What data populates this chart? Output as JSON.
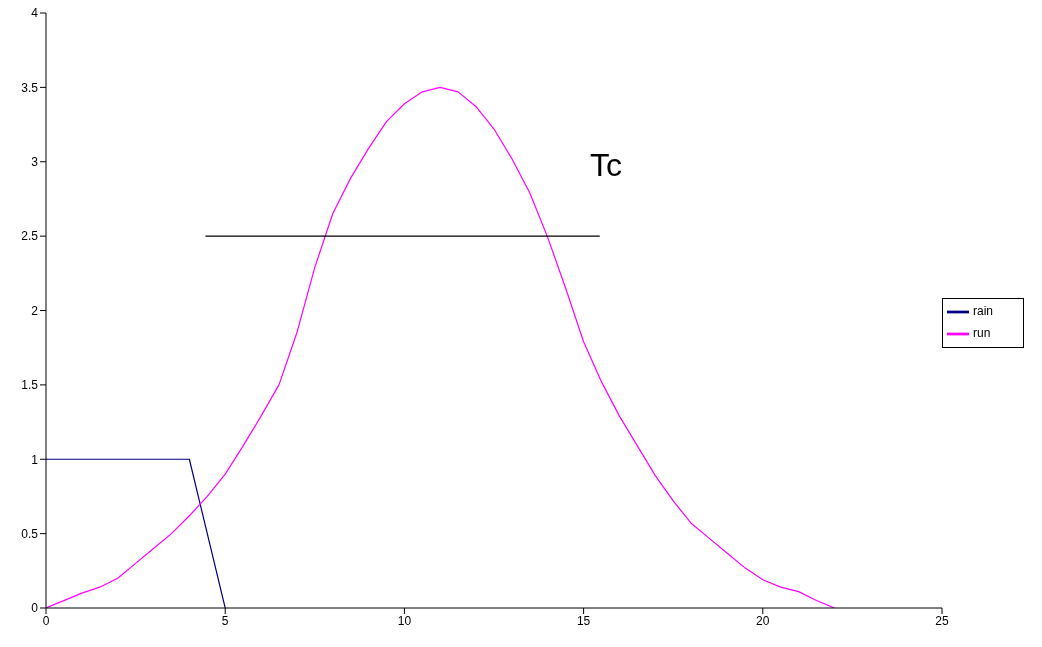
{
  "chart_data": {
    "type": "line",
    "xlim": [
      0,
      25
    ],
    "xticks": [
      0,
      5,
      10,
      15,
      20,
      25
    ],
    "ylim": [
      0,
      4
    ],
    "yticks": [
      0,
      0.5,
      1,
      1.5,
      2,
      2.5,
      3,
      3.5,
      4
    ],
    "grid": false,
    "legend": "right",
    "marker": "none",
    "line_style": "solid",
    "series": [
      {
        "name": "rain",
        "color": "#000080",
        "x": [
          0,
          4,
          5
        ],
        "values": [
          1,
          1,
          0
        ]
      },
      {
        "name": "run",
        "color": "#ff00ff",
        "x": [
          0,
          1,
          1.5,
          2,
          2.5,
          3,
          3.5,
          4,
          4.5,
          5,
          5.5,
          6,
          6.5,
          7,
          7.5,
          8,
          8.5,
          9,
          9.5,
          10,
          10.5,
          11,
          11.5,
          12,
          12.5,
          13,
          13.5,
          14,
          14.5,
          15,
          15.5,
          16,
          16.5,
          17,
          17.5,
          18,
          18.5,
          19,
          19.5,
          20,
          20.5,
          21,
          21.5,
          22
        ],
        "values": [
          0,
          0.1,
          0.14,
          0.2,
          0.3,
          0.4,
          0.5,
          0.62,
          0.75,
          0.9,
          1.09,
          1.29,
          1.5,
          1.85,
          2.29,
          2.65,
          2.89,
          3.09,
          3.27,
          3.39,
          3.47,
          3.5,
          3.47,
          3.37,
          3.22,
          3.02,
          2.79,
          2.49,
          2.15,
          1.79,
          1.52,
          1.29,
          1.09,
          0.89,
          0.72,
          0.57,
          0.47,
          0.37,
          0.27,
          0.19,
          0.14,
          0.11,
          0.05,
          0
        ]
      },
      {
        "color": "#000000",
        "x": [
          4.45,
          15.45
        ],
        "values": [
          2.5,
          2.5
        ]
      }
    ],
    "annotations": [
      "Tc"
    ]
  }
}
